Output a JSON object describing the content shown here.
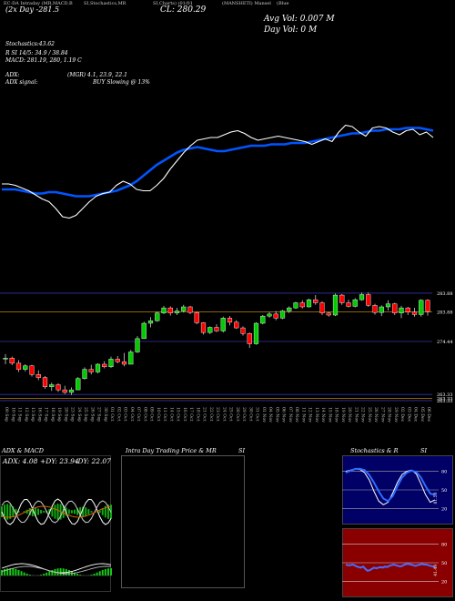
{
  "header": {
    "hdr1": "EC-DA Intraday (MR,MACD,B",
    "hdr2": "SI,Stochastics,MR",
    "hdr3": "SI,Charts) (01/01",
    "hdr4": "(MANSHETI) Mansel",
    "hdr4b": "(Blue",
    "price_line": "(2x Day -281.5",
    "close_label": "CL: 280.29",
    "avg_vol": "Avg Vol: 0.007 M",
    "day_vol": "Day Vol: 0 M"
  },
  "indicators": {
    "stoch_title": "Stochastics:43.62",
    "stoch_values": "R   SI 14/5: 34.9 / 38.84",
    "macd": "MACD: 281.19, 280,  1.19 C",
    "adx": "ADX:",
    "adx_mgr": "(MGR) 4.1, 23.9,  22.1",
    "adx_signal_label": "ADX  signal:",
    "adx_signal": "BUY Slowing @ 13%"
  },
  "price_axis": {
    "labels": [
      "283.88",
      "283.88",
      "274.44",
      "263.33",
      "263.33",
      "263.33"
    ],
    "level_values": [
      283.88,
      280.2,
      274.44,
      264.1,
      263.33,
      262.9
    ]
  },
  "dates": [
    "09 Sep",
    "10 Sep",
    "11 Sep",
    "12 Sep",
    "13 Sep",
    "16 Sep",
    "17 Sep",
    "18 Sep",
    "19 Sep",
    "20 Sep",
    "23 Sep",
    "24 Sep",
    "25 Sep",
    "26 Sep",
    "27 Sep",
    "30 Sep",
    "01 Oct",
    "02 Oct",
    "03 Oct",
    "04 Oct",
    "07 Oct",
    "08 Oct",
    "09 Oct",
    "10 Oct",
    "11 Oct",
    "14 Oct",
    "15 Oct",
    "16 Oct",
    "17 Oct",
    "18 Oct",
    "21 Oct",
    "22 Oct",
    "23 Oct",
    "24 Oct",
    "25 Oct",
    "28 Oct",
    "29 Oct",
    "30 Oct",
    "31 Oct",
    "01 Nov",
    "04 Nov",
    "05 Nov",
    "06 Nov",
    "07 Nov",
    "08 Nov",
    "11 Nov",
    "12 Nov",
    "13 Nov",
    "14 Nov",
    "15 Nov",
    "18 Nov",
    "19 Nov",
    "20 Nov",
    "21 Nov",
    "22 Nov",
    "25 Nov",
    "26 Nov",
    "27 Nov",
    "28 Nov",
    "29 Nov",
    "02 Dec",
    "03 Dec",
    "04 Dec",
    "05 Dec",
    "06 Dec"
  ],
  "chart_data": [
    {
      "type": "line",
      "name": "top-panel",
      "series": [
        {
          "name": "",
          "color": "#ffffff",
          "values": [
            62,
            62,
            61,
            59,
            57,
            54,
            51,
            49,
            44,
            38,
            37,
            39,
            44,
            49,
            53,
            55,
            56,
            61,
            64,
            62,
            58,
            57,
            57,
            61,
            66,
            73,
            79,
            85,
            90,
            94,
            95,
            96,
            96,
            98,
            100,
            101,
            99,
            96,
            94,
            95,
            96,
            97,
            96,
            95,
            94,
            93,
            91,
            93,
            95,
            93,
            100,
            105,
            104,
            100,
            97,
            103,
            104,
            103,
            100,
            98,
            101,
            102,
            98,
            100,
            96
          ]
        },
        {
          "name": "",
          "color": "#0055ff",
          "values": [
            58,
            58,
            58,
            57,
            56,
            55,
            55,
            56,
            56,
            55,
            54,
            53,
            53,
            53,
            54,
            55,
            56,
            57,
            59,
            61,
            64,
            68,
            72,
            76,
            79,
            82,
            85,
            87,
            88,
            89,
            88,
            87,
            86,
            86,
            87,
            88,
            89,
            90,
            90,
            90,
            91,
            91,
            91,
            92,
            92,
            92,
            93,
            94,
            95,
            96,
            97,
            98,
            99,
            99,
            100,
            101,
            101,
            102,
            102,
            102,
            103,
            103,
            103,
            102,
            101
          ]
        }
      ]
    },
    {
      "type": "candlestick",
      "name": "price-panel",
      "series": [
        {
          "name": "",
          "values": [
            [
              271,
              272,
              270,
              271.2
            ],
            [
              271.2,
              271.5,
              269.8,
              270.2
            ],
            [
              270.2,
              270.8,
              268.5,
              269
            ],
            [
              269,
              270,
              268.6,
              269.7
            ],
            [
              269.7,
              269.9,
              267.6,
              268
            ],
            [
              268,
              268.8,
              266.9,
              267.4
            ],
            [
              267.4,
              267.7,
              265.2,
              265.6
            ],
            [
              265.6,
              266.4,
              264.8,
              266
            ],
            [
              266,
              266.3,
              264.6,
              265
            ],
            [
              265,
              265.8,
              264.2,
              264.5
            ],
            [
              264.5,
              265.5,
              264,
              265
            ],
            [
              265,
              267.5,
              265,
              267.2
            ],
            [
              267.2,
              269.4,
              267,
              269
            ],
            [
              269,
              269.9,
              268,
              268.5
            ],
            [
              268.5,
              270.2,
              268.2,
              270
            ],
            [
              270,
              270.6,
              269.2,
              269.5
            ],
            [
              269.5,
              271.5,
              269.3,
              271
            ],
            [
              271,
              271.6,
              270.2,
              270.5
            ],
            [
              270.5,
              272.2,
              269.6,
              270
            ],
            [
              270,
              272.8,
              270,
              272.4
            ],
            [
              272.4,
              275.5,
              272.2,
              275
            ],
            [
              275,
              278.3,
              275,
              278
            ],
            [
              278,
              279.2,
              277.2,
              278.5
            ],
            [
              278.5,
              280.3,
              278.3,
              280
            ],
            [
              280,
              281.4,
              279.8,
              281
            ],
            [
              281,
              281.3,
              279.5,
              280
            ],
            [
              280,
              281,
              279.6,
              280.4
            ],
            [
              280.4,
              281.6,
              280.1,
              281.2
            ],
            [
              281.2,
              281.4,
              279.8,
              280.1
            ],
            [
              280.1,
              280.3,
              277.8,
              278.1
            ],
            [
              278.1,
              278.2,
              275.8,
              276.2
            ],
            [
              276.2,
              277.4,
              275.9,
              277.2
            ],
            [
              277.2,
              277.8,
              276.3,
              276.5
            ],
            [
              276.5,
              279.3,
              276.2,
              279
            ],
            [
              279,
              279.4,
              277.6,
              278.2
            ],
            [
              278.2,
              278.6,
              276.9,
              277.1
            ],
            [
              277.1,
              277.4,
              275.6,
              276
            ],
            [
              276,
              276.2,
              273.2,
              274
            ],
            [
              274,
              278.2,
              273.8,
              278
            ],
            [
              278,
              279.6,
              277.8,
              279.4
            ],
            [
              279.4,
              280.2,
              279.1,
              279.8
            ],
            [
              279.8,
              280.4,
              278.6,
              279
            ],
            [
              279,
              280.6,
              278.8,
              280.4
            ],
            [
              280.4,
              281.3,
              280,
              281
            ],
            [
              281,
              282.2,
              280.8,
              282
            ],
            [
              282,
              282.5,
              280.9,
              281.2
            ],
            [
              281.2,
              282.8,
              281.1,
              282.6
            ],
            [
              282.6,
              283.5,
              281.6,
              282
            ],
            [
              282,
              282.3,
              279.6,
              280
            ],
            [
              280,
              280.2,
              279.3,
              279.6
            ],
            [
              279.6,
              283.8,
              279.4,
              283.5
            ],
            [
              283.5,
              283.7,
              281.6,
              282
            ],
            [
              282,
              282.6,
              281.1,
              281.3
            ],
            [
              281.3,
              282.9,
              281.1,
              282.6
            ],
            [
              282.6,
              284,
              282.4,
              283.6
            ],
            [
              283.6,
              284,
              281.2,
              281.5
            ],
            [
              281.5,
              281.8,
              279.7,
              280.1
            ],
            [
              280.1,
              281.5,
              279.4,
              281.2
            ],
            [
              281.2,
              282.5,
              280.5,
              281.8
            ],
            [
              281.8,
              282,
              279.6,
              280
            ],
            [
              280,
              281.4,
              279,
              281
            ],
            [
              281,
              281.2,
              279.6,
              280.2
            ],
            [
              280.2,
              281,
              279.3,
              279.7
            ],
            [
              279.7,
              282.7,
              279.3,
              282.5
            ],
            [
              282.5,
              282.7,
              279.5,
              280.3
            ]
          ]
        }
      ],
      "ylim": [
        262,
        286
      ]
    },
    {
      "type": "line",
      "name": "adx-macd-panel",
      "title": "ADX  & MACD",
      "series": [],
      "annotations": [
        "ADX: 4.08",
        "+DY: 23.94",
        "-DY: 22.07"
      ]
    },
    {
      "type": "line",
      "name": "intraday-panel",
      "title": "Intra  Day Trading Price  & MR",
      "series": []
    },
    {
      "type": "line",
      "name": "stochastics-panel",
      "title": "Stochastics & R",
      "series": [
        {
          "name": "",
          "color": "#ffffff",
          "values": [
            80,
            82,
            84,
            83,
            78,
            66,
            48,
            32,
            26,
            30,
            45,
            62,
            75,
            80,
            82,
            76,
            60,
            42,
            30,
            34
          ]
        },
        {
          "name": "",
          "color": "#2e6bff",
          "values": [
            78,
            81,
            84,
            84,
            82,
            74,
            62,
            48,
            36,
            32,
            40,
            56,
            70,
            78,
            81,
            79,
            70,
            56,
            44,
            42
          ]
        }
      ],
      "ylim": [
        0,
        100
      ],
      "grid_levels": [
        80,
        50,
        20
      ],
      "annotations": [
        "81.50"
      ]
    },
    {
      "type": "line",
      "name": "mrsi-panel",
      "series": [
        {
          "name": "",
          "color": "#4a6bff",
          "values": [
            47,
            46,
            46,
            47,
            46,
            44,
            43,
            42,
            44,
            40,
            37,
            38,
            40,
            42,
            41,
            42,
            43,
            42,
            44,
            43,
            45,
            46,
            47,
            46,
            45,
            44,
            45,
            47,
            48,
            48,
            47,
            46,
            45,
            46,
            47,
            48,
            47,
            47,
            46,
            45,
            44,
            43
          ]
        }
      ],
      "ylim": [
        0,
        100
      ],
      "grid_levels": [
        80,
        50,
        20
      ],
      "annotations": [
        "41.49"
      ]
    }
  ],
  "bottom_panels": {
    "adx_title": "ADX  & MACD",
    "adx_val": "ADX: 4.08",
    "pdy": "+DY: 23.94",
    "mdy": "-DY: 22.07",
    "intraday_title": "Intra  Day Trading Price  & MR",
    "intraday_si": "SI",
    "stoch_title": "Stochastics & R",
    "stoch_si": "SI",
    "stoch_grid": [
      "80",
      "50",
      "20"
    ],
    "mrsi_grid": [
      "80",
      "50",
      "20"
    ],
    "stoch_side": "81.50",
    "mrsi_side": "41.49"
  }
}
